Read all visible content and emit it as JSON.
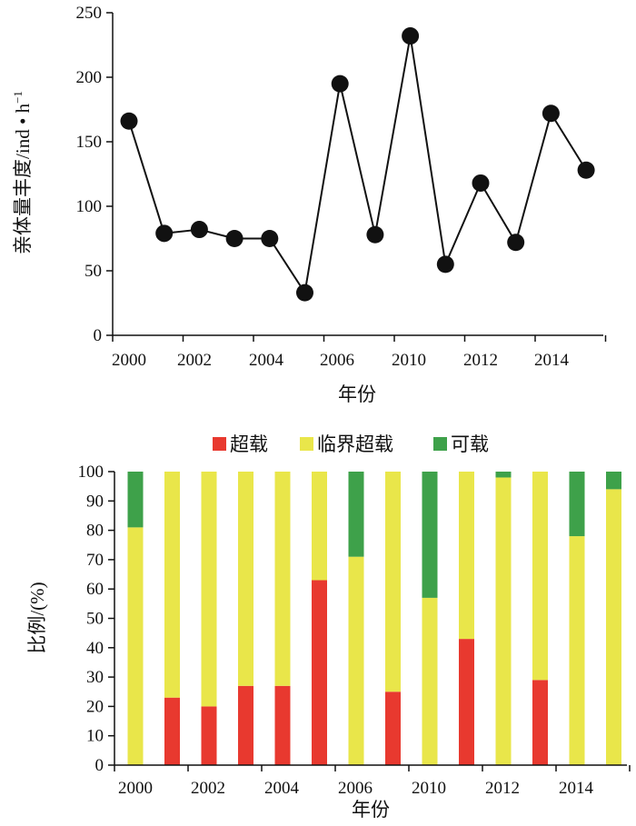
{
  "chart_data": [
    {
      "type": "line",
      "ylabel": "亲体量丰度/ind • h",
      "ylabel_superscript": "−1",
      "xlabel": "年份",
      "ylim": [
        0,
        250
      ],
      "yticks": [
        0,
        50,
        100,
        150,
        200,
        250
      ],
      "xtick_labels": [
        "2000",
        "2002",
        "2004",
        "2006",
        "2010",
        "2012",
        "2014"
      ],
      "series": [
        {
          "points": [
            {
              "x": 0,
              "y": 166
            },
            {
              "x": 1,
              "y": 79
            },
            {
              "x": 2,
              "y": 82
            },
            {
              "x": 3,
              "y": 75
            },
            {
              "x": 4,
              "y": 75
            },
            {
              "x": 5,
              "y": 33
            },
            {
              "x": 6,
              "y": 195
            },
            {
              "x": 7,
              "y": 78
            },
            {
              "x": 8,
              "y": 232
            },
            {
              "x": 9,
              "y": 55
            },
            {
              "x": 10,
              "y": 118
            },
            {
              "x": 11,
              "y": 72
            },
            {
              "x": 12,
              "y": 172
            },
            {
              "x": 13,
              "y": 128
            }
          ]
        }
      ],
      "marker_color": "#111111",
      "grid": false
    },
    {
      "type": "bar",
      "stacked": true,
      "ylabel": "比例/(%)",
      "xlabel": "年份",
      "ylim": [
        0,
        100
      ],
      "yticks": [
        0,
        10,
        20,
        30,
        40,
        50,
        60,
        70,
        80,
        90,
        100
      ],
      "xtick_labels": [
        "2000",
        "2002",
        "2004",
        "2006",
        "2010",
        "2012",
        "2014"
      ],
      "legend_position": "top-center",
      "series": [
        {
          "name": "超载",
          "color": "#e8392f",
          "values": [
            0,
            23,
            20,
            27,
            27,
            63,
            0,
            25,
            0,
            43,
            0,
            29,
            0,
            0
          ]
        },
        {
          "name": "临界超载",
          "color": "#e9e64a",
          "values": [
            81,
            77,
            80,
            73,
            73,
            37,
            71,
            75,
            57,
            57,
            98,
            71,
            78,
            94
          ]
        },
        {
          "name": "可载",
          "color": "#3ea14a",
          "values": [
            19,
            0,
            0,
            0,
            0,
            0,
            29,
            0,
            43,
            0,
            2,
            0,
            22,
            6
          ]
        }
      ],
      "grid": false
    }
  ]
}
